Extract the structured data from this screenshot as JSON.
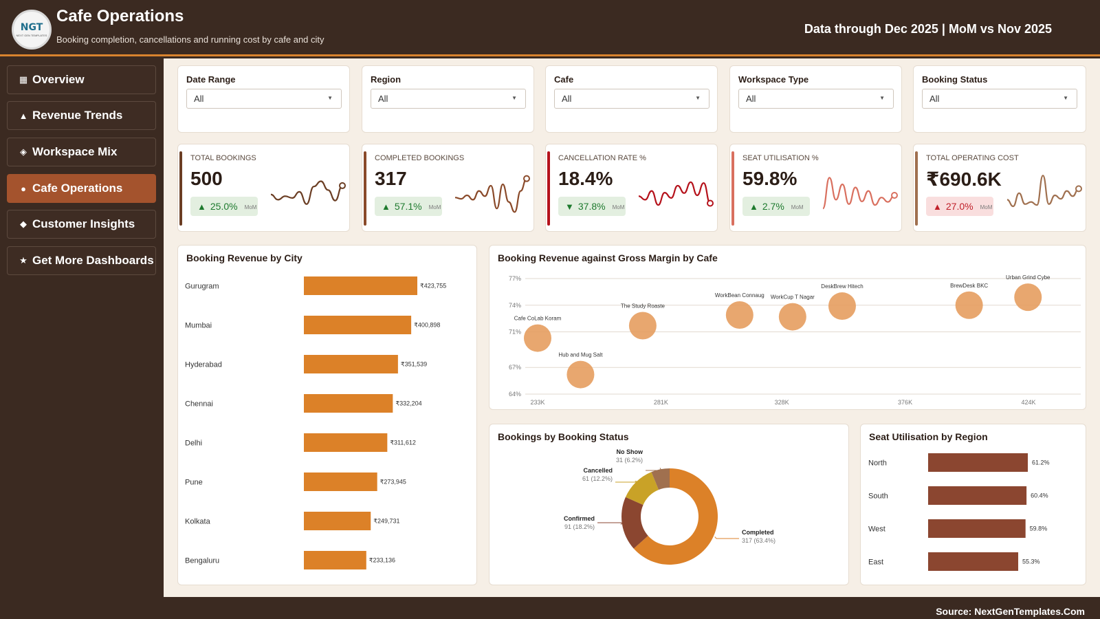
{
  "header": {
    "logo_text": "NGT",
    "logo_subtext": "NEXT GEN TEMPLATES",
    "title": "Cafe Operations",
    "subtitle": "Booking completion, cancellations and running cost by cafe and city",
    "period": "Data through Dec 2025 | MoM vs Nov 2025"
  },
  "sidebar": {
    "items": [
      {
        "icon": "▦",
        "icon_name": "grid-icon",
        "label": "Overview"
      },
      {
        "icon": "▲",
        "icon_name": "triangle-icon",
        "label": "Revenue Trends"
      },
      {
        "icon": "◈",
        "icon_name": "diamond-icon",
        "label": "Workspace Mix"
      },
      {
        "icon": "●",
        "icon_name": "dot-icon",
        "label": "Cafe Operations"
      },
      {
        "icon": "◆",
        "icon_name": "diamond-solid-icon",
        "label": "Customer Insights"
      },
      {
        "icon": "★",
        "icon_name": "star-icon",
        "label": "Get More Dashboards"
      }
    ],
    "active_index": 3
  },
  "filters": [
    {
      "label": "Date Range",
      "value": "All"
    },
    {
      "label": "Region",
      "value": "All"
    },
    {
      "label": "Cafe",
      "value": "All"
    },
    {
      "label": "Workspace Type",
      "value": "All"
    },
    {
      "label": "Booking Status",
      "value": "All"
    }
  ],
  "kpis": [
    {
      "label": "TOTAL BOOKINGS",
      "value": "500",
      "change": "25.0%",
      "direction": "up",
      "mom": "MoM",
      "color": "#6b3e24",
      "badge": "good",
      "trend": [
        52,
        40,
        48,
        44,
        58,
        30,
        70,
        82,
        62,
        38,
        72
      ]
    },
    {
      "label": "COMPLETED BOOKINGS",
      "value": "317",
      "change": "57.1%",
      "direction": "up",
      "mom": "MoM",
      "color": "#8a4a2a",
      "badge": "good",
      "trend": [
        45,
        42,
        50,
        40,
        60,
        48,
        72,
        20,
        75,
        35,
        12,
        60,
        88
      ]
    },
    {
      "label": "CANCELLATION RATE %",
      "value": "18.4%",
      "change": "37.8%",
      "direction": "down",
      "mom": "MoM",
      "color": "#b5121b",
      "badge": "good",
      "trend": [
        48,
        40,
        60,
        28,
        56,
        44,
        72,
        55,
        80,
        50,
        78,
        32
      ]
    },
    {
      "label": "SEAT UTILISATION %",
      "value": "59.8%",
      "change": "2.7%",
      "direction": "up",
      "mom": "MoM",
      "color": "#d9705f",
      "badge": "good",
      "trend": [
        20,
        90,
        40,
        75,
        30,
        68,
        36,
        60,
        28,
        45,
        35,
        50
      ]
    },
    {
      "label": "TOTAL OPERATING COST",
      "value": "₹690.6K",
      "change": "27.0%",
      "direction": "up",
      "mom": "MoM",
      "color": "#a0704f",
      "badge": "bad",
      "trend": [
        40,
        25,
        55,
        30,
        35,
        28,
        95,
        30,
        50,
        42,
        60,
        48,
        65
      ]
    }
  ],
  "city_chart": {
    "title": "Booking Revenue by City"
  },
  "bubble_chart": {
    "title": "Booking Revenue against Gross Margin by Cafe"
  },
  "donut_chart": {
    "title": "Bookings by Booking Status"
  },
  "region_chart": {
    "title": "Seat Utilisation by Region"
  },
  "footer": {
    "source": "Source: NextGenTemplates.Com"
  },
  "colors": {
    "accent": "#d9832e",
    "sidebar_bg": "#3b2a21",
    "active_nav": "#a4532d",
    "bar_orange": "#dc8128",
    "bar_brown": "#8b4630",
    "bubble": "#e69d5f"
  },
  "chart_data": [
    {
      "type": "bar",
      "orientation": "horizontal",
      "title": "Booking Revenue by City",
      "categories": [
        "Gurugram",
        "Mumbai",
        "Hyderabad",
        "Chennai",
        "Delhi",
        "Pune",
        "Kolkata",
        "Bengaluru"
      ],
      "values": [
        423755,
        400898,
        351539,
        332204,
        311612,
        273945,
        249731,
        233136
      ],
      "value_labels": [
        "₹423,755",
        "₹400,898",
        "₹351,539",
        "₹332,204",
        "₹311,612",
        "₹273,945",
        "₹249,731",
        "₹233,136"
      ]
    },
    {
      "type": "scatter",
      "title": "Booking Revenue against Gross Margin by Cafe",
      "x_ticks": [
        "233K",
        "281K",
        "328K",
        "376K",
        "424K"
      ],
      "y_ticks": [
        "77%",
        "74%",
        "71%",
        "67%",
        "64%"
      ],
      "xlim": [
        233000,
        424000
      ],
      "ylim": [
        64,
        77
      ],
      "points": [
        {
          "label": "Cafe CoLab Koram",
          "x": 233000,
          "y": 70.3
        },
        {
          "label": "Hub and Mug Salt",
          "x": 249700,
          "y": 66.2
        },
        {
          "label": "The Study Roaste",
          "x": 273900,
          "y": 71.7
        },
        {
          "label": "WorkBean Connaug",
          "x": 311600,
          "y": 72.9
        },
        {
          "label": "WorkCup T Nagar",
          "x": 332200,
          "y": 72.7
        },
        {
          "label": "DeskBrew Hitech",
          "x": 351500,
          "y": 73.9
        },
        {
          "label": "BrewDesk BKC",
          "x": 400900,
          "y": 74.0
        },
        {
          "label": "Urban Grind Cybe",
          "x": 423800,
          "y": 74.9
        }
      ]
    },
    {
      "type": "pie",
      "variant": "donut",
      "title": "Bookings by Booking Status",
      "slices": [
        {
          "name": "Completed",
          "value": 317,
          "label": "317 (63.4%)",
          "color": "#dc8128"
        },
        {
          "name": "Confirmed",
          "value": 91,
          "label": "91 (18.2%)",
          "color": "#8b4630"
        },
        {
          "name": "Cancelled",
          "value": 61,
          "label": "61 (12.2%)",
          "color": "#c9a227"
        },
        {
          "name": "No Show",
          "value": 31,
          "label": "31 (6.2%)",
          "color": "#a0704f"
        }
      ]
    },
    {
      "type": "bar",
      "orientation": "horizontal",
      "title": "Seat Utilisation by Region",
      "categories": [
        "North",
        "South",
        "West",
        "East"
      ],
      "values": [
        61.2,
        60.4,
        59.8,
        55.3
      ],
      "value_labels": [
        "61.2%",
        "60.4%",
        "59.8%",
        "55.3%"
      ]
    }
  ]
}
